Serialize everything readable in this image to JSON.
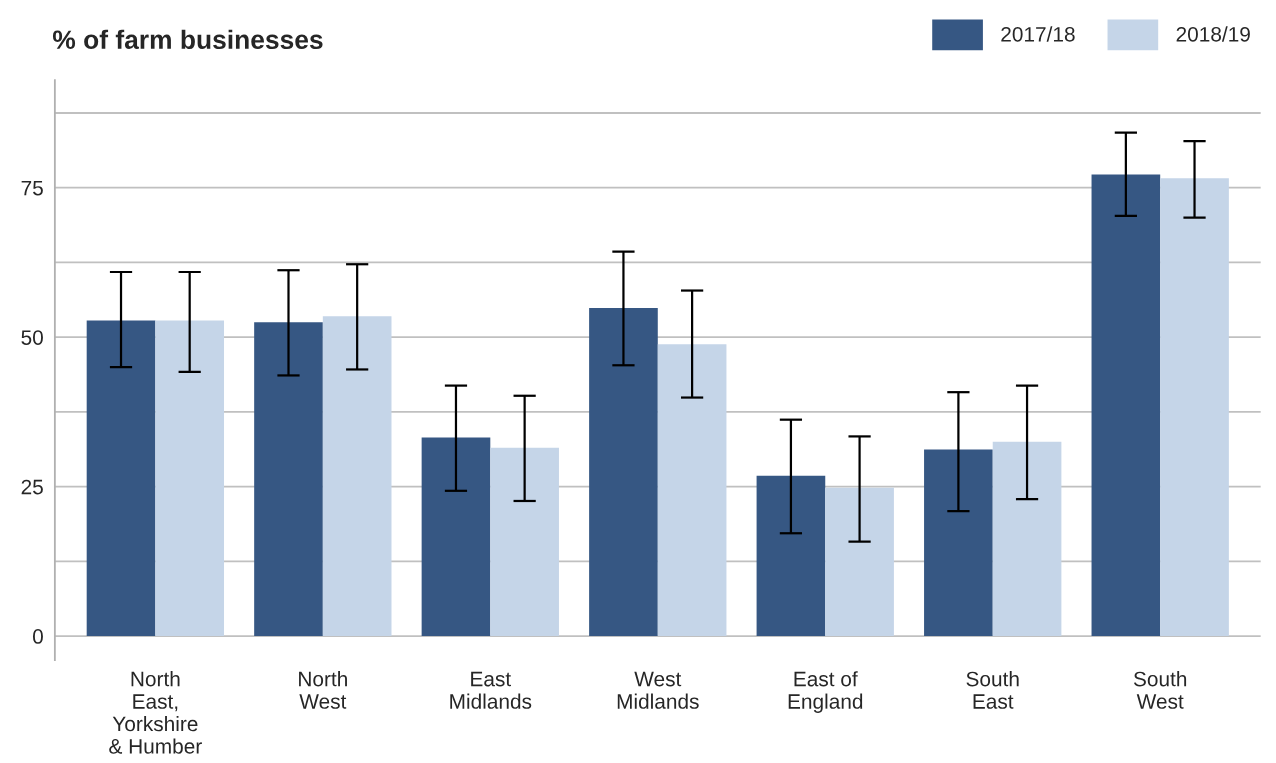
{
  "chart_data": {
    "type": "bar",
    "title": "% of farm businesses",
    "categories": [
      "North\nEast,\nYorkshire\n& Humber",
      "North\nWest",
      "East\nMidlands",
      "West\nMidlands",
      "East of\nEngland",
      "South\nEast",
      "South\nWest"
    ],
    "series": [
      {
        "name": "2017/18",
        "color": "#365783",
        "values": [
          52.8,
          52.5,
          33.2,
          54.9,
          26.8,
          31.2,
          77.2
        ],
        "errors": [
          [
            45.0,
            60.9
          ],
          [
            43.6,
            61.2
          ],
          [
            24.3,
            41.9
          ],
          [
            45.3,
            64.3
          ],
          [
            17.2,
            36.2
          ],
          [
            20.9,
            40.8
          ],
          [
            70.3,
            84.2
          ]
        ]
      },
      {
        "name": "2018/19",
        "color": "#c5d5e8",
        "values": [
          52.8,
          53.5,
          31.5,
          48.8,
          24.8,
          32.5,
          76.6
        ],
        "errors": [
          [
            44.2,
            60.9
          ],
          [
            44.6,
            62.2
          ],
          [
            22.6,
            40.2
          ],
          [
            39.9,
            57.8
          ],
          [
            15.8,
            33.4
          ],
          [
            22.9,
            41.9
          ],
          [
            70.0,
            82.8
          ]
        ]
      }
    ],
    "ylim": [
      -4,
      93
    ],
    "yticks": [
      0,
      {
        "value": 12.5,
        "label": null
      },
      25,
      {
        "value": 37.5,
        "label": null
      },
      50,
      {
        "value": 62.5,
        "label": null
      },
      75,
      {
        "value": 87.5,
        "label": null
      }
    ],
    "grid": "y",
    "legend": "top right"
  }
}
